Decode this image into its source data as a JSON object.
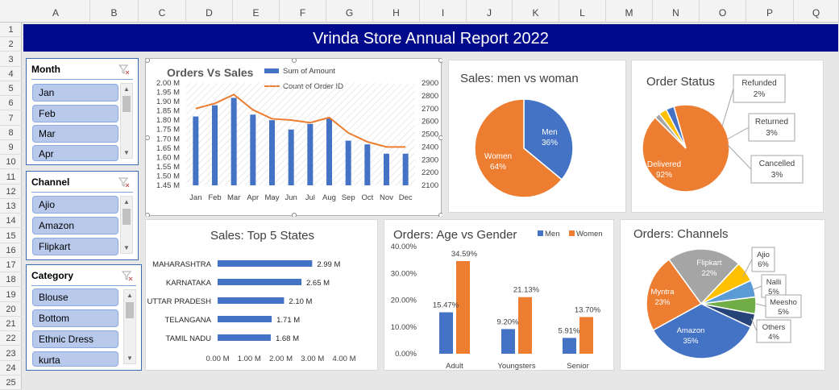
{
  "spreadsheet": {
    "columns": [
      "A",
      "B",
      "C",
      "D",
      "E",
      "F",
      "G",
      "H",
      "I",
      "J",
      "K",
      "L",
      "M",
      "N",
      "O",
      "P",
      "Q"
    ],
    "rows": [
      "1",
      "2",
      "3",
      "4",
      "5",
      "6",
      "7",
      "8",
      "9",
      "10",
      "11",
      "12",
      "13",
      "14",
      "15",
      "16",
      "17",
      "18",
      "19",
      "20",
      "21",
      "22",
      "23",
      "24",
      "25"
    ]
  },
  "report_title": "Vrinda Store Annual Report 2022",
  "slicers": {
    "month": {
      "title": "Month",
      "items": [
        "Jan",
        "Feb",
        "Mar",
        "Apr"
      ]
    },
    "channel": {
      "title": "Channel",
      "items": [
        "Ajio",
        "Amazon",
        "Flipkart"
      ]
    },
    "category": {
      "title": "Category",
      "items": [
        "Blouse",
        "Bottom",
        "Ethnic Dress",
        "kurta"
      ]
    }
  },
  "colors": {
    "blue": "#4472c4",
    "orange": "#ed7d31",
    "gray": "#a5a5a5",
    "gold": "#ffc000",
    "lightblue": "#5b9bd5",
    "green": "#70ad47",
    "navy": "#264478",
    "title_bg": "#020a8c"
  },
  "chart_data": [
    {
      "id": "orders_vs_sales",
      "type": "bar",
      "title": "Orders Vs Sales",
      "categories": [
        "Jan",
        "Feb",
        "Mar",
        "Apr",
        "May",
        "Jun",
        "Jul",
        "Aug",
        "Sep",
        "Oct",
        "Nov",
        "Dec"
      ],
      "series": [
        {
          "name": "Sum of Amount",
          "type": "bar",
          "axis": "left",
          "values": [
            1.82,
            1.88,
            1.92,
            1.83,
            1.8,
            1.75,
            1.78,
            1.81,
            1.69,
            1.67,
            1.62,
            1.62
          ]
        },
        {
          "name": "Count of Order ID",
          "type": "line",
          "axis": "right",
          "values": [
            2700,
            2740,
            2810,
            2690,
            2620,
            2610,
            2590,
            2630,
            2510,
            2440,
            2400,
            2400
          ]
        }
      ],
      "y_left_ticks": [
        "2.00 M",
        "1.95 M",
        "1.90 M",
        "1.85 M",
        "1.80 M",
        "1.75 M",
        "1.70 M",
        "1.65 M",
        "1.60 M",
        "1.55 M",
        "1.50 M",
        "1.45 M"
      ],
      "y_right_ticks": [
        "2900",
        "2800",
        "2700",
        "2600",
        "2500",
        "2400",
        "2300",
        "2200",
        "2100"
      ],
      "ylim_left": [
        1.45,
        2.0
      ],
      "ylim_right": [
        2100,
        2900
      ],
      "legend": "top"
    },
    {
      "id": "sales_men_women",
      "type": "pie",
      "title": "Sales: men vs woman",
      "slices": [
        {
          "label": "Men",
          "value": 36,
          "text": "36%"
        },
        {
          "label": "Women",
          "value": 64,
          "text": "64%"
        }
      ]
    },
    {
      "id": "order_status",
      "type": "pie",
      "title": "Order Status",
      "slices": [
        {
          "label": "Delivered",
          "value": 92,
          "text": "92%"
        },
        {
          "label": "Refunded",
          "value": 2,
          "text": "2%"
        },
        {
          "label": "Returned",
          "value": 3,
          "text": "3%"
        },
        {
          "label": "Cancelled",
          "value": 3,
          "text": "3%"
        }
      ]
    },
    {
      "id": "top5_states",
      "type": "bar",
      "orientation": "horizontal",
      "title": "Sales: Top 5 States",
      "categories": [
        "MAHARASHTRA",
        "KARNATAKA",
        "UTTAR PRADESH",
        "TELANGANA",
        "TAMIL NADU"
      ],
      "values": [
        2.99,
        2.65,
        2.1,
        1.71,
        1.68
      ],
      "value_labels": [
        "2.99 M",
        "2.65 M",
        "2.10 M",
        "1.71 M",
        "1.68 M"
      ],
      "x_ticks": [
        "0.00 M",
        "1.00 M",
        "2.00 M",
        "3.00 M",
        "4.00 M"
      ],
      "xlim": [
        0,
        4
      ]
    },
    {
      "id": "age_vs_gender",
      "type": "bar",
      "title": "Orders: Age vs Gender",
      "categories": [
        "Adult",
        "Youngsters",
        "Senior"
      ],
      "series": [
        {
          "name": "Men",
          "values": [
            15.47,
            9.2,
            5.91
          ],
          "labels": [
            "15.47%",
            "9.20%",
            "5.91%"
          ]
        },
        {
          "name": "Women",
          "values": [
            34.59,
            21.13,
            13.7
          ],
          "labels": [
            "34.59%",
            "21.13%",
            "13.70%"
          ]
        }
      ],
      "y_ticks": [
        "40.00%",
        "30.00%",
        "20.00%",
        "10.00%",
        "0.00%"
      ],
      "ylim": [
        0,
        40
      ],
      "legend": "top-right"
    },
    {
      "id": "channels",
      "type": "pie",
      "title": "Orders: Channels",
      "slices": [
        {
          "label": "Amazon",
          "value": 35,
          "text": "35%"
        },
        {
          "label": "Myntra",
          "value": 23,
          "text": "23%"
        },
        {
          "label": "Flipkart",
          "value": 22,
          "text": "22%"
        },
        {
          "label": "Ajio",
          "value": 6,
          "text": "6%"
        },
        {
          "label": "Nalli",
          "value": 5,
          "text": "5%"
        },
        {
          "label": "Meesho",
          "value": 5,
          "text": "5%"
        },
        {
          "label": "Others",
          "value": 4,
          "text": "4%"
        }
      ]
    }
  ]
}
